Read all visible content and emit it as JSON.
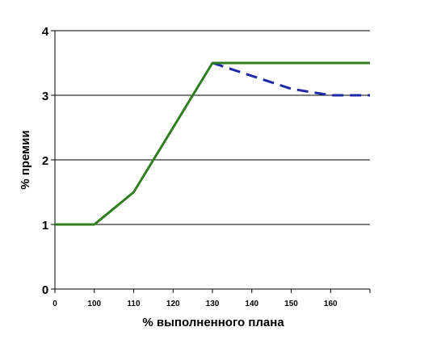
{
  "chart_data": {
    "type": "line",
    "xlabel": "% выполненного плана",
    "ylabel": "% премии",
    "x_categories": [
      "0",
      "100",
      "110",
      "120",
      "130",
      "140",
      "150",
      "160",
      ""
    ],
    "y_ticks": [
      0,
      1,
      2,
      3,
      4
    ],
    "ylim": [
      0,
      4
    ],
    "grid": "horizontal",
    "series": [
      {
        "style": "solid",
        "color": "#2e7d1e",
        "points": [
          {
            "x": "0",
            "y": 1.0
          },
          {
            "x": "100",
            "y": 1.0
          },
          {
            "x": "110",
            "y": 1.5
          },
          {
            "x": "120",
            "y": 2.5
          },
          {
            "x": "130",
            "y": 3.5
          },
          {
            "x": "140",
            "y": 3.5
          },
          {
            "x": "150",
            "y": 3.5
          },
          {
            "x": "160",
            "y": 3.5
          },
          {
            "x": "",
            "y": 3.5
          }
        ]
      },
      {
        "style": "dashed",
        "color": "#1f2aa8",
        "points": [
          {
            "x": "130",
            "y": 3.5
          },
          {
            "x": "140",
            "y": 3.3
          },
          {
            "x": "150",
            "y": 3.1
          },
          {
            "x": "160",
            "y": 3.0
          },
          {
            "x": "",
            "y": 3.0
          }
        ]
      }
    ]
  }
}
